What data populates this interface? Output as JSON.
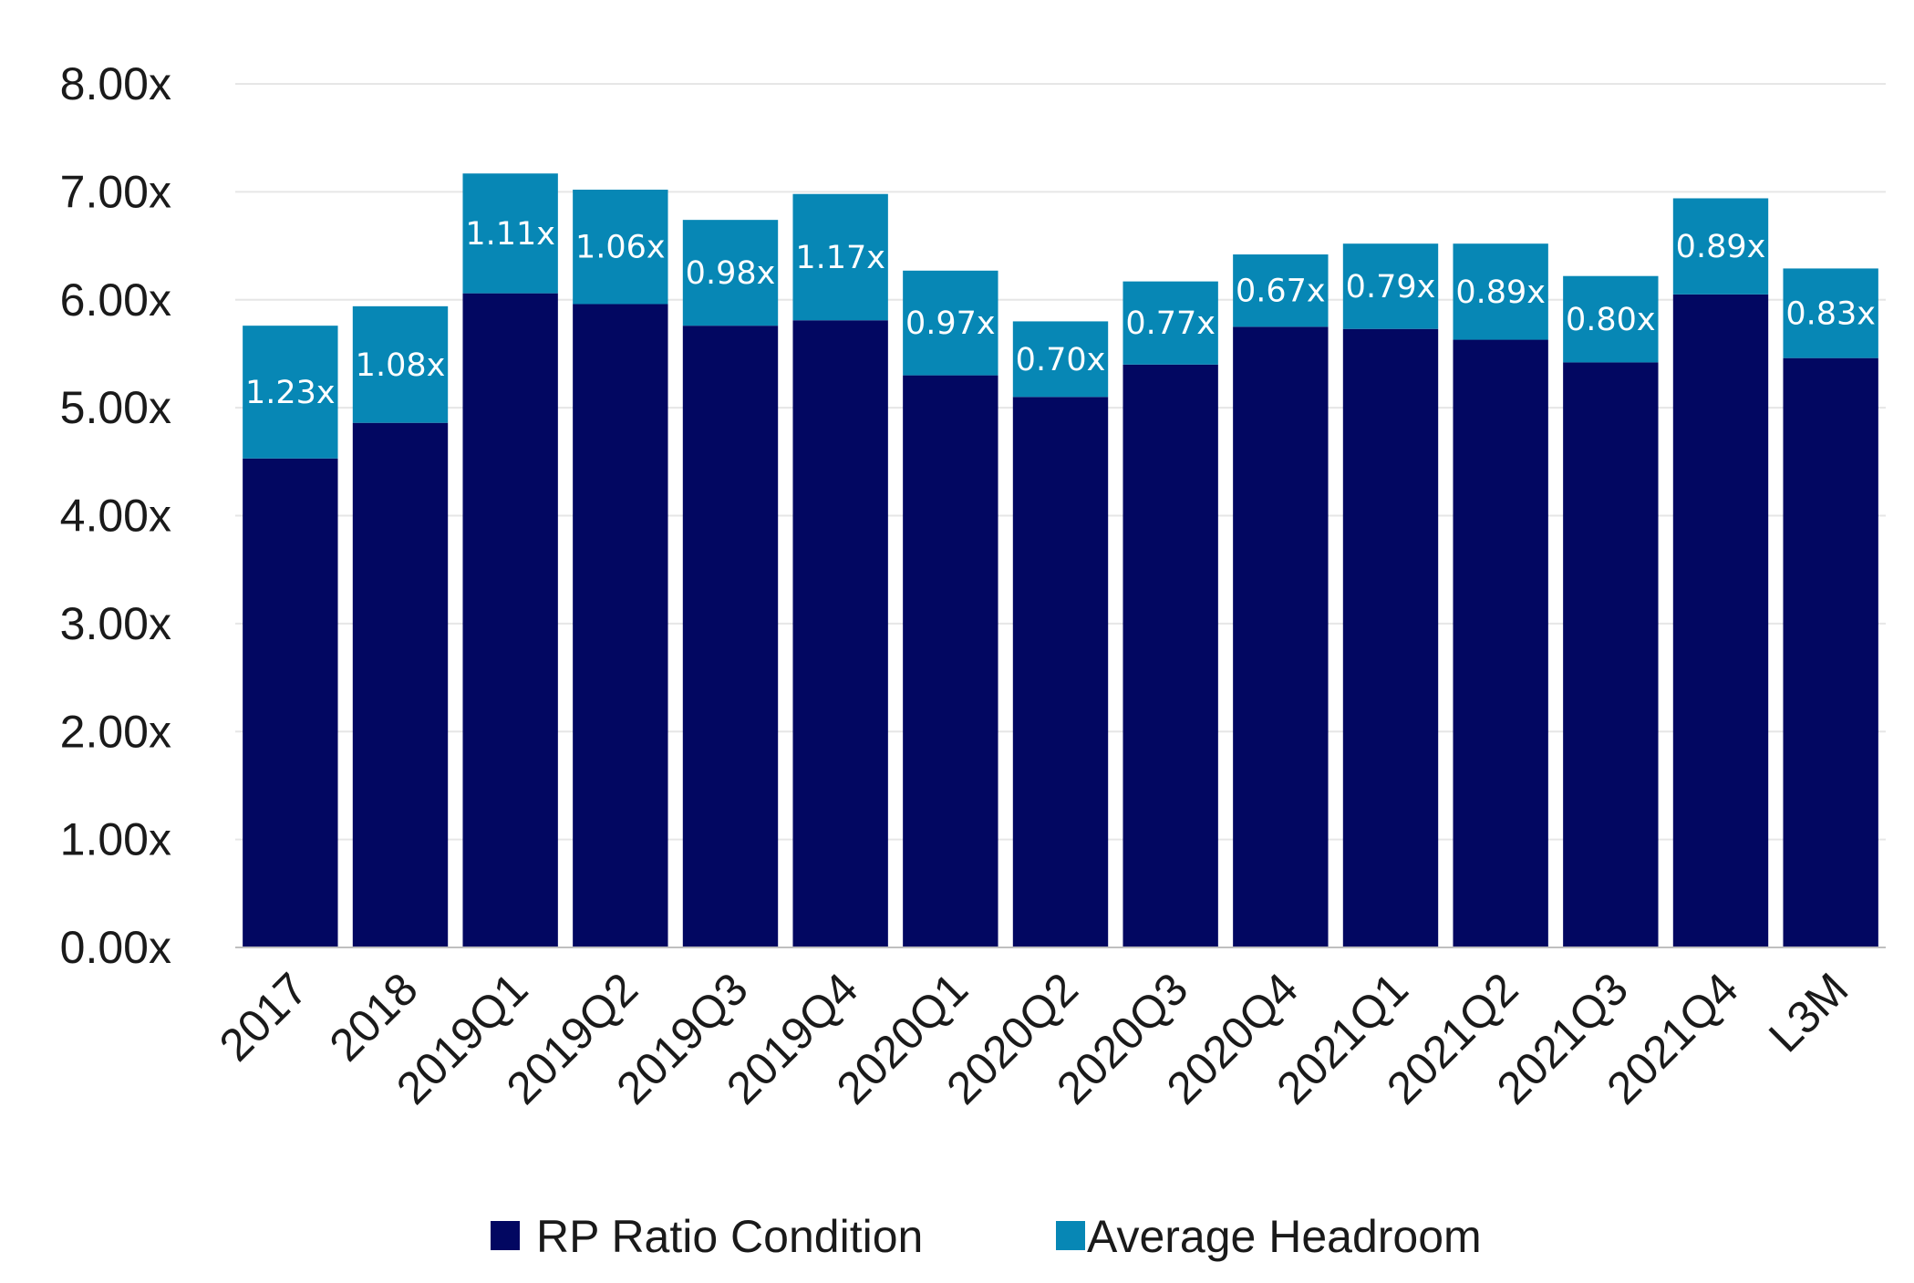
{
  "chart_data": {
    "type": "bar",
    "stacked": true,
    "categories": [
      "2017",
      "2018",
      "2019Q1",
      "2019Q2",
      "2019Q3",
      "2019Q4",
      "2020Q1",
      "2020Q2",
      "2020Q3",
      "2020Q4",
      "2021Q1",
      "2021Q2",
      "2021Q3",
      "2021Q4",
      "L3M"
    ],
    "series": [
      {
        "name": "RP Ratio Condition",
        "color": "#020761",
        "values": [
          4.53,
          4.86,
          6.06,
          5.96,
          5.76,
          5.81,
          5.3,
          5.1,
          5.4,
          5.75,
          5.73,
          5.63,
          5.42,
          6.05,
          5.46
        ]
      },
      {
        "name": "Average Headroom",
        "color": "#0787B5",
        "values": [
          1.23,
          1.08,
          1.11,
          1.06,
          0.98,
          1.17,
          0.97,
          0.7,
          0.77,
          0.67,
          0.79,
          0.89,
          0.8,
          0.89,
          0.83
        ],
        "labels": [
          "1.23x",
          "1.08x",
          "1.11x",
          "1.06x",
          "0.98x",
          "1.17x",
          "0.97x",
          "0.70x",
          "0.77x",
          "0.67x",
          "0.79x",
          "0.89x",
          "0.80x",
          "0.89x",
          "0.83x"
        ]
      }
    ],
    "y_ticks": [
      "0.00x",
      "1.00x",
      "2.00x",
      "3.00x",
      "4.00x",
      "5.00x",
      "6.00x",
      "7.00x",
      "8.00x"
    ],
    "ylim": [
      0,
      8
    ],
    "title": "",
    "xlabel": "",
    "ylabel": "",
    "grid": true,
    "legend_position": "bottom"
  }
}
